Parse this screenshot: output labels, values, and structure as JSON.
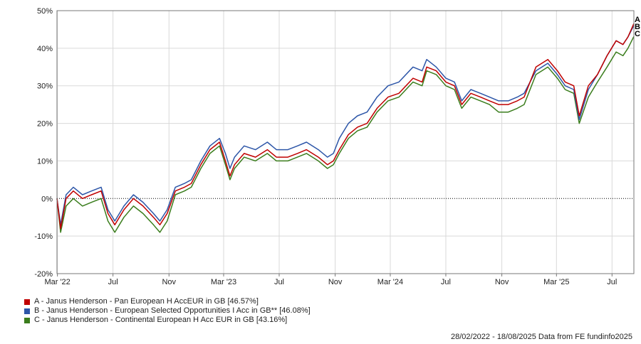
{
  "chart_data": {
    "type": "line",
    "ylim": [
      -20,
      50
    ],
    "yticks": [
      "50%",
      "40%",
      "30%",
      "20%",
      "10%",
      "0%",
      "-10%",
      "-20%"
    ],
    "ytick_values": [
      50,
      40,
      30,
      20,
      10,
      0,
      -10,
      -20
    ],
    "xlim": [
      "2022-02-28",
      "2025-08-18"
    ],
    "xticks": [
      {
        "label": "Mar '22",
        "date": "2022-03-01"
      },
      {
        "label": "Jul",
        "date": "2022-07-01"
      },
      {
        "label": "Nov",
        "date": "2022-11-01"
      },
      {
        "label": "Mar '23",
        "date": "2023-03-01"
      },
      {
        "label": "Jul",
        "date": "2023-07-01"
      },
      {
        "label": "Nov",
        "date": "2023-11-01"
      },
      {
        "label": "Mar '24",
        "date": "2024-03-01"
      },
      {
        "label": "Jul",
        "date": "2024-07-01"
      },
      {
        "label": "Nov",
        "date": "2024-11-01"
      },
      {
        "label": "Mar '25",
        "date": "2025-03-01"
      },
      {
        "label": "Jul",
        "date": "2025-07-01"
      }
    ],
    "grid": true,
    "zero_line": "dotted",
    "legend_position": "bottom-left",
    "dates": [
      "2022-02-28",
      "2022-03-08",
      "2022-03-20",
      "2022-04-05",
      "2022-04-25",
      "2022-05-15",
      "2022-06-05",
      "2022-06-20",
      "2022-07-05",
      "2022-07-25",
      "2022-08-15",
      "2022-09-05",
      "2022-09-28",
      "2022-10-12",
      "2022-10-28",
      "2022-11-15",
      "2022-12-05",
      "2022-12-20",
      "2023-01-10",
      "2023-01-30",
      "2023-02-20",
      "2023-03-05",
      "2023-03-15",
      "2023-03-25",
      "2023-04-15",
      "2023-05-10",
      "2023-06-05",
      "2023-06-25",
      "2023-07-20",
      "2023-08-10",
      "2023-08-30",
      "2023-09-25",
      "2023-10-15",
      "2023-10-28",
      "2023-11-10",
      "2023-11-30",
      "2023-12-20",
      "2024-01-10",
      "2024-02-01",
      "2024-02-25",
      "2024-03-20",
      "2024-04-20",
      "2024-05-10",
      "2024-05-20",
      "2024-06-10",
      "2024-07-01",
      "2024-07-20",
      "2024-08-05",
      "2024-08-25",
      "2024-09-15",
      "2024-10-05",
      "2024-10-25",
      "2024-11-15",
      "2024-12-05",
      "2024-12-20",
      "2025-01-15",
      "2025-02-10",
      "2025-03-03",
      "2025-03-20",
      "2025-04-08",
      "2025-04-20",
      "2025-05-10",
      "2025-05-30",
      "2025-06-20",
      "2025-07-10",
      "2025-07-25",
      "2025-08-05",
      "2025-08-18"
    ],
    "series": [
      {
        "name": "A - Janus Henderson - Pan European H AccEUR in GB [46.57%]",
        "color": "#c00000",
        "end_label": "A",
        "values": [
          0,
          -8,
          0,
          2,
          0,
          1,
          2,
          -4,
          -7,
          -3,
          0,
          -2,
          -5,
          -7,
          -4,
          2,
          3,
          4,
          9,
          13,
          15,
          10,
          6,
          9,
          12,
          11,
          13,
          11,
          11,
          12,
          13,
          11,
          9,
          10,
          13,
          17,
          19,
          20,
          24,
          27,
          28,
          32,
          31,
          35,
          34,
          31,
          30,
          25,
          28,
          27,
          26,
          25,
          25,
          26,
          27,
          35,
          37,
          34,
          31,
          30,
          22,
          30,
          33,
          38,
          42,
          41,
          43,
          46.57
        ]
      },
      {
        "name": "B - Janus Henderson - European Selected Opportunities I Acc in GB** [46.08%]",
        "color": "#2d56a8",
        "end_label": "B",
        "values": [
          0,
          -7,
          1,
          3,
          1,
          2,
          3,
          -3,
          -6,
          -2,
          1,
          -1,
          -4,
          -6,
          -3,
          3,
          4,
          5,
          10,
          14,
          16,
          12,
          8,
          11,
          14,
          13,
          15,
          13,
          13,
          14,
          15,
          13,
          11,
          12,
          16,
          20,
          22,
          23,
          27,
          30,
          31,
          35,
          34,
          37,
          35,
          32,
          31,
          26,
          29,
          28,
          27,
          26,
          26,
          27,
          28,
          34,
          36,
          33,
          30,
          29,
          21,
          29,
          33,
          38,
          42,
          41,
          43,
          46.08
        ]
      },
      {
        "name": "C - Janus Henderson - Continental European H Acc EUR in GB [43.16%]",
        "color": "#3a7d1c",
        "end_label": "C",
        "values": [
          0,
          -9,
          -2,
          0,
          -2,
          -1,
          0,
          -6,
          -9,
          -5,
          -2,
          -4,
          -7,
          -9,
          -6,
          1,
          2,
          3,
          8,
          12,
          14,
          9,
          5,
          8,
          11,
          10,
          12,
          10,
          10,
          11,
          12,
          10,
          8,
          9,
          12,
          16,
          18,
          19,
          23,
          26,
          27,
          31,
          30,
          34,
          33,
          30,
          29,
          24,
          27,
          26,
          25,
          23,
          23,
          24,
          25,
          33,
          35,
          32,
          29,
          28,
          20,
          27,
          31,
          35,
          39,
          38,
          40,
          43.16
        ]
      }
    ]
  },
  "legend": {
    "items": [
      {
        "label": "A - Janus Henderson - Pan European H AccEUR in GB [46.57%]",
        "color": "#c00000"
      },
      {
        "label": "B - Janus Henderson - European Selected Opportunities I Acc in GB** [46.08%]",
        "color": "#2d56a8"
      },
      {
        "label": "C - Janus Henderson - Continental European H Acc EUR in GB [43.16%]",
        "color": "#3a7d1c"
      }
    ]
  },
  "footer": {
    "text": "28/02/2022 - 18/08/2025 Data from FE fundinfo2025"
  }
}
